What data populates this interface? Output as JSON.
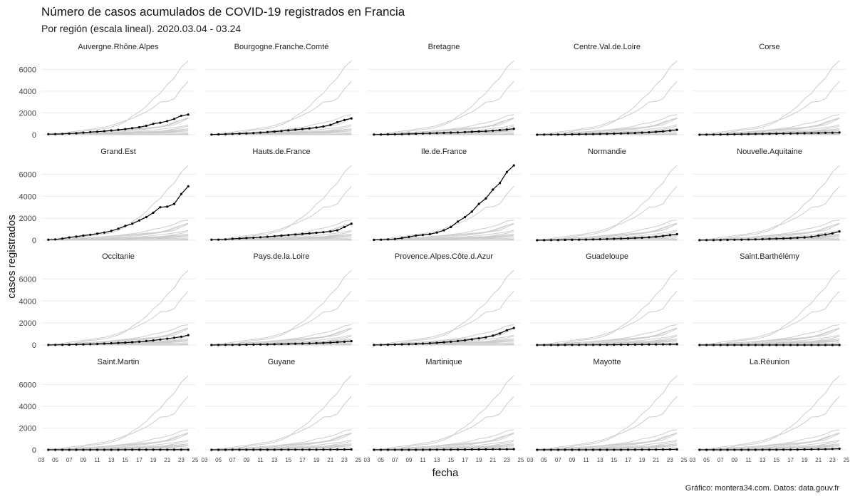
{
  "chart_data": {
    "type": "line",
    "title": "Número de casos acumulados de COVID-19 registrados en Francia",
    "subtitle": "Por región (escala lineal). 2020.03.04 - 03.24",
    "xlabel": "fecha",
    "ylabel": "casos registrados",
    "caption": "Gráfico: montera34.com. Datos: data.gouv.fr",
    "facets": true,
    "grid": true,
    "ylim": [
      0,
      7000
    ],
    "yticks": [
      0,
      2000,
      4000,
      6000
    ],
    "xlim": [
      3,
      25
    ],
    "xticks": [
      3,
      5,
      7,
      9,
      11,
      13,
      15,
      17,
      19,
      21,
      23,
      25
    ],
    "xtick_labels": [
      "03",
      "05",
      "07",
      "09",
      "11",
      "13",
      "15",
      "17",
      "19",
      "21",
      "23",
      "25"
    ],
    "x": [
      4,
      5,
      6,
      7,
      8,
      9,
      10,
      11,
      12,
      13,
      14,
      15,
      16,
      17,
      18,
      19,
      20,
      21,
      22,
      23,
      24
    ],
    "series": [
      {
        "name": "Auvergne.Rhône.Alpes",
        "values": [
          50,
          60,
          80,
          110,
          140,
          190,
          240,
          280,
          330,
          390,
          450,
          520,
          600,
          690,
          820,
          1000,
          1100,
          1250,
          1450,
          1750,
          1850
        ]
      },
      {
        "name": "Bourgogne.Franche.Comté",
        "values": [
          10,
          30,
          50,
          80,
          100,
          120,
          150,
          190,
          240,
          290,
          340,
          400,
          460,
          520,
          580,
          660,
          760,
          900,
          1150,
          1350,
          1500
        ]
      },
      {
        "name": "Bretagne",
        "values": [
          10,
          20,
          30,
          40,
          55,
          70,
          90,
          110,
          130,
          150,
          170,
          190,
          210,
          240,
          270,
          300,
          330,
          370,
          420,
          480,
          550
        ]
      },
      {
        "name": "Centre.Val.de.Loire",
        "values": [
          0,
          5,
          10,
          15,
          20,
          30,
          40,
          50,
          60,
          70,
          85,
          100,
          120,
          140,
          160,
          190,
          220,
          260,
          310,
          380,
          450
        ]
      },
      {
        "name": "Corse",
        "values": [
          0,
          5,
          10,
          20,
          30,
          40,
          50,
          60,
          70,
          80,
          90,
          100,
          110,
          120,
          130,
          140,
          150,
          160,
          170,
          180,
          200
        ]
      },
      {
        "name": "Grand.Est",
        "values": [
          50,
          80,
          150,
          250,
          330,
          420,
          500,
          600,
          700,
          850,
          1050,
          1300,
          1500,
          1800,
          2100,
          2500,
          3000,
          3050,
          3300,
          4200,
          4900
        ]
      },
      {
        "name": "Hauts.de.France",
        "values": [
          50,
          60,
          80,
          130,
          160,
          200,
          230,
          270,
          320,
          370,
          420,
          470,
          520,
          580,
          630,
          680,
          730,
          800,
          900,
          1200,
          1500
        ]
      },
      {
        "name": "Ile.de.France",
        "values": [
          30,
          50,
          80,
          110,
          200,
          300,
          420,
          480,
          550,
          700,
          900,
          1200,
          1700,
          2100,
          2600,
          3300,
          3800,
          4600,
          5200,
          6200,
          6800
        ]
      },
      {
        "name": "Normandie",
        "values": [
          0,
          5,
          10,
          20,
          30,
          40,
          50,
          60,
          70,
          90,
          110,
          130,
          150,
          170,
          200,
          230,
          270,
          320,
          380,
          470,
          550
        ]
      },
      {
        "name": "Nouvelle.Aquitaine",
        "values": [
          5,
          10,
          15,
          25,
          35,
          45,
          55,
          65,
          80,
          100,
          120,
          140,
          160,
          190,
          220,
          260,
          320,
          420,
          520,
          620,
          800
        ]
      },
      {
        "name": "Occitanie",
        "values": [
          5,
          10,
          20,
          30,
          45,
          60,
          80,
          100,
          130,
          160,
          190,
          220,
          260,
          300,
          360,
          420,
          500,
          580,
          660,
          750,
          900
        ]
      },
      {
        "name": "Pays.de.la.Loire",
        "values": [
          0,
          5,
          10,
          15,
          20,
          30,
          40,
          50,
          60,
          70,
          85,
          100,
          115,
          130,
          150,
          170,
          190,
          220,
          260,
          300,
          350
        ]
      },
      {
        "name": "Provence.Alpes.Côte.d.Azur",
        "values": [
          5,
          15,
          25,
          40,
          60,
          80,
          100,
          130,
          160,
          200,
          250,
          300,
          360,
          430,
          510,
          600,
          700,
          850,
          1050,
          1350,
          1550
        ]
      },
      {
        "name": "Guadeloupe",
        "values": [
          0,
          0,
          0,
          0,
          5,
          10,
          10,
          15,
          15,
          20,
          20,
          25,
          30,
          35,
          40,
          45,
          50,
          55,
          60,
          65,
          70
        ]
      },
      {
        "name": "Saint.Barthélémy",
        "values": [
          0,
          0,
          0,
          0,
          0,
          0,
          0,
          0,
          1,
          1,
          1,
          2,
          2,
          3,
          3,
          3,
          3,
          3,
          3,
          3,
          3
        ]
      },
      {
        "name": "Saint.Martin",
        "values": [
          0,
          0,
          0,
          0,
          1,
          2,
          2,
          2,
          3,
          3,
          3,
          4,
          4,
          5,
          5,
          5,
          6,
          6,
          8,
          8,
          8
        ]
      },
      {
        "name": "Guyane",
        "values": [
          0,
          0,
          0,
          5,
          5,
          5,
          5,
          5,
          5,
          5,
          10,
          10,
          10,
          15,
          15,
          15,
          20,
          20,
          25,
          25,
          30
        ]
      },
      {
        "name": "Martinique",
        "values": [
          0,
          0,
          0,
          0,
          0,
          2,
          2,
          3,
          5,
          10,
          15,
          15,
          20,
          25,
          30,
          35,
          40,
          45,
          50,
          55,
          60
        ]
      },
      {
        "name": "Mayotte",
        "values": [
          0,
          0,
          0,
          0,
          0,
          0,
          0,
          0,
          0,
          1,
          1,
          2,
          3,
          5,
          7,
          10,
          15,
          20,
          25,
          30,
          35
        ]
      },
      {
        "name": "La.Réunion",
        "values": [
          0,
          0,
          0,
          0,
          0,
          1,
          1,
          2,
          3,
          5,
          7,
          9,
          12,
          15,
          20,
          30,
          40,
          50,
          60,
          80,
          100
        ]
      }
    ]
  }
}
